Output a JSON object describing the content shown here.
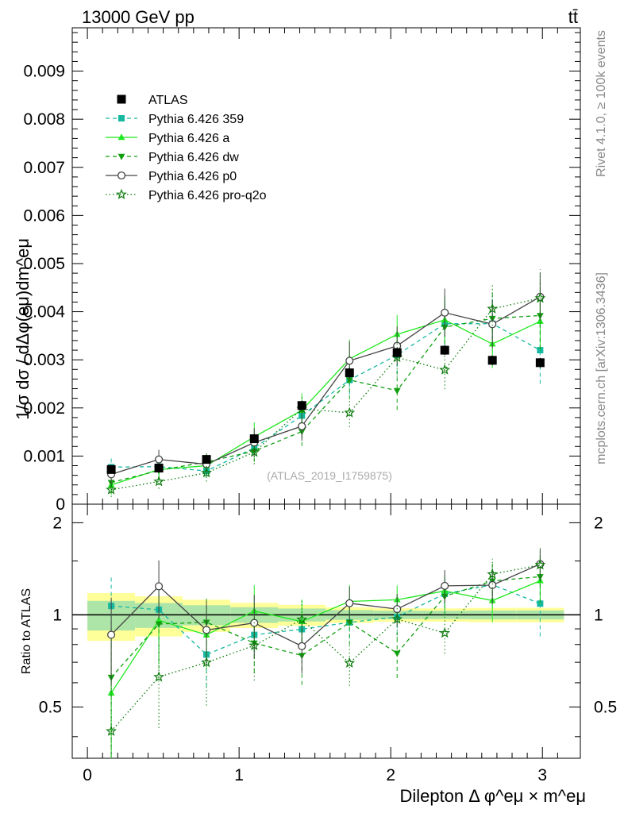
{
  "header": {
    "left": "13000 GeV pp",
    "right": "tt̄"
  },
  "side_labels": {
    "rivet": "Rivet 4.1.0, ≥ 100k events",
    "mcplots": "mcplots.cern.ch [arXiv:1306.3436]"
  },
  "watermark": "(ATLAS_2019_I1759875)",
  "chart_data": {
    "type": "line",
    "title": "",
    "xlabel": "Dilepton Δ φ^eμ × m^eμ",
    "ylabel": "1/σ dσ / dΔφ(eμ)dm^eμ",
    "ratio_ylabel": "Ratio to ATLAS",
    "xlim": [
      -0.1,
      3.25
    ],
    "ylim": [
      0,
      0.0099
    ],
    "ratio_ylim": [
      0.34,
      2.3
    ],
    "x_ticks": [
      "0",
      "1",
      "2",
      "3"
    ],
    "y_ticks": [
      "0",
      "0.001",
      "0.002",
      "0.003",
      "0.004",
      "0.005",
      "0.006",
      "0.007",
      "0.008",
      "0.009"
    ],
    "ratio_ticks": [
      "0.5",
      "1",
      "2"
    ],
    "x": [
      0.157,
      0.471,
      0.785,
      1.1,
      1.414,
      1.728,
      2.042,
      2.356,
      2.67,
      2.985
    ],
    "legend": [
      {
        "key": "atlas",
        "label": "ATLAS"
      },
      {
        "key": "p359",
        "label": "Pythia 6.426 359"
      },
      {
        "key": "pa",
        "label": "Pythia 6.426 a"
      },
      {
        "key": "pdw",
        "label": "Pythia 6.426 dw"
      },
      {
        "key": "pp0",
        "label": "Pythia 6.426 p0"
      },
      {
        "key": "pq2o",
        "label": "Pythia 6.426 pro-q2o"
      }
    ],
    "data": {
      "name": "ATLAS",
      "values": [
        0.00072,
        0.00075,
        0.00093,
        0.00136,
        0.00205,
        0.00273,
        0.00315,
        0.0032,
        0.00299,
        0.00294
      ],
      "errors": [
        8e-05,
        7e-05,
        7e-05,
        8e-05,
        0.0001,
        0.0001,
        0.0001,
        0.0001,
        0.0001,
        0.0001
      ]
    },
    "series": [
      {
        "key": "p359",
        "name": "Pythia 6.426 359",
        "color": "#16b8a0",
        "dash": "5,4",
        "marker": "square",
        "values": [
          0.00077,
          0.00078,
          0.00069,
          0.00117,
          0.00184,
          0.00258,
          0.0031,
          0.00375,
          0.00375,
          0.0032
        ],
        "errors": [
          0.0002,
          0.0002,
          0.00015,
          0.00015,
          0.00025,
          0.0003,
          0.0004,
          0.0005,
          0.0006,
          0.0007
        ]
      },
      {
        "key": "pa",
        "name": "Pythia 6.426 a",
        "color": "#1ee81e",
        "dash": "",
        "marker": "triangle-up",
        "values": [
          0.0004,
          0.00072,
          0.0008,
          0.0014,
          0.00195,
          0.00302,
          0.00353,
          0.00383,
          0.00333,
          0.0038
        ],
        "errors": [
          0.0002,
          0.0002,
          0.00018,
          0.0003,
          0.00035,
          0.0004,
          0.0004,
          0.0005,
          0.0005,
          0.0006
        ]
      },
      {
        "key": "pdw",
        "name": "Pythia 6.426 dw",
        "color": "#0f9f0f",
        "dash": "5,4",
        "marker": "triangle-down",
        "values": [
          0.00045,
          0.0007,
          0.00088,
          0.0011,
          0.00151,
          0.00258,
          0.00236,
          0.00368,
          0.00386,
          0.00392
        ],
        "errors": [
          0.0002,
          0.0002,
          0.00018,
          0.00022,
          0.0003,
          0.0004,
          0.0004,
          0.0005,
          0.0006,
          0.0007
        ]
      },
      {
        "key": "pp0",
        "name": "Pythia 6.426 p0",
        "color": "#444444",
        "dash": "",
        "marker": "circle",
        "values": [
          0.00062,
          0.00093,
          0.00083,
          0.00128,
          0.00162,
          0.00298,
          0.00329,
          0.00398,
          0.00374,
          0.00431
        ],
        "errors": [
          0.0002,
          0.0002,
          0.0002,
          0.0003,
          0.0003,
          0.0004,
          0.0004,
          0.0005,
          0.0005,
          0.0005
        ]
      },
      {
        "key": "pq2o",
        "name": "Pythia 6.426 pro-q2o",
        "color": "#0a7a0a",
        "dash": "1.5,3",
        "marker": "star",
        "values": [
          0.0003,
          0.00047,
          0.00065,
          0.00108,
          0.00198,
          0.0019,
          0.00305,
          0.00279,
          0.00406,
          0.00428
        ],
        "errors": [
          0.00015,
          0.00015,
          0.00018,
          0.00025,
          0.0003,
          0.0003,
          0.0004,
          0.0004,
          0.0005,
          0.0006
        ]
      }
    ]
  }
}
